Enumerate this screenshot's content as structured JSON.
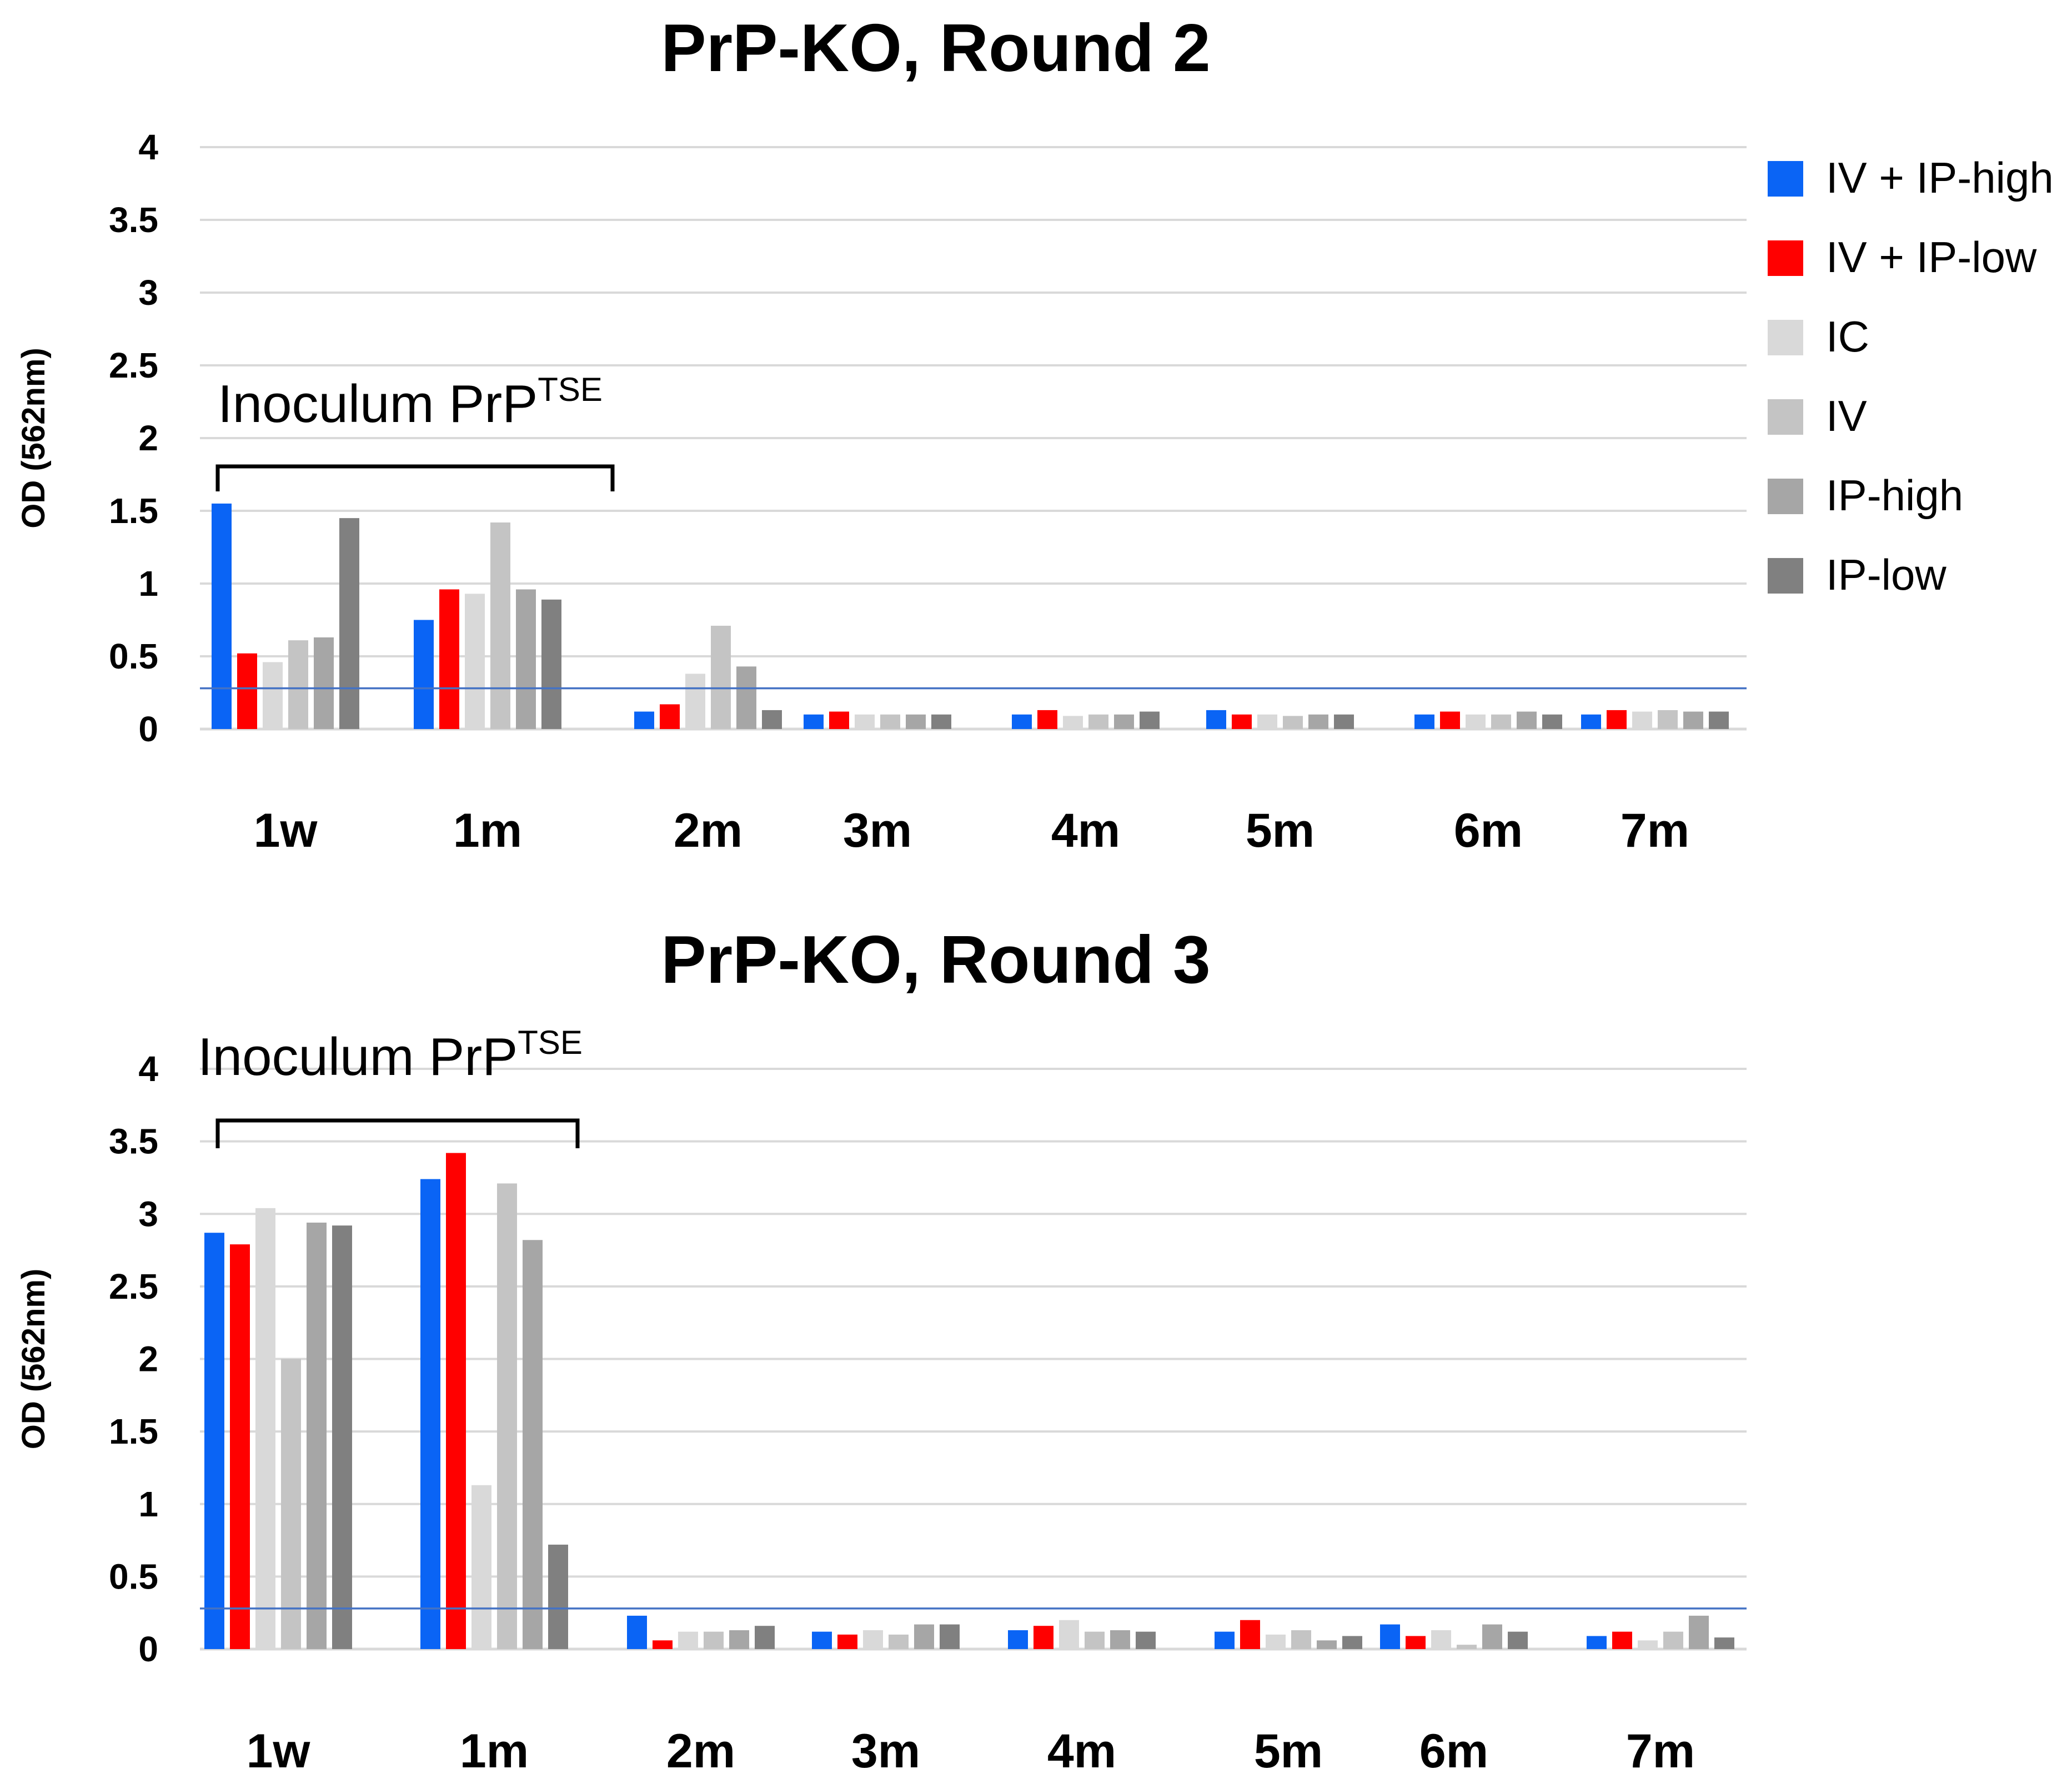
{
  "legend": {
    "items": [
      {
        "label": "IV + IP-high",
        "color": "#0a64f5"
      },
      {
        "label": "IV + IP-low",
        "color": "#ff0000"
      },
      {
        "label": "IC",
        "color": "#d9d9d9"
      },
      {
        "label": "IV",
        "color": "#c4c4c4"
      },
      {
        "label": "IP-high",
        "color": "#a6a6a6"
      },
      {
        "label": "IP-low",
        "color": "#808080"
      }
    ]
  },
  "chart_data": [
    {
      "type": "bar",
      "title": "PrP-KO, Round 2",
      "ylabel": "OD (562nm)",
      "xlabel": "",
      "ylim": [
        0,
        4
      ],
      "yticks": [
        "0",
        "0.5",
        "1",
        "1.5",
        "2",
        "2.5",
        "3",
        "3.5",
        "4"
      ],
      "categories": [
        "1w",
        "1m",
        "2m",
        "3m",
        "4m",
        "5m",
        "6m",
        "7m"
      ],
      "threshold": 0.28,
      "annotation": {
        "text": "Inoculum PrP",
        "superscript": "TSE",
        "spans": [
          "1w",
          "1m"
        ]
      },
      "series": [
        {
          "name": "IV + IP-high",
          "values": [
            1.55,
            0.75,
            0.12,
            0.1,
            0.1,
            0.13,
            0.1,
            0.1
          ]
        },
        {
          "name": "IV + IP-low",
          "values": [
            0.52,
            0.96,
            0.17,
            0.12,
            0.13,
            0.1,
            0.12,
            0.13
          ]
        },
        {
          "name": "IC",
          "values": [
            0.46,
            0.93,
            0.38,
            0.1,
            0.09,
            0.1,
            0.1,
            0.12
          ]
        },
        {
          "name": "IV",
          "values": [
            0.61,
            1.42,
            0.71,
            0.1,
            0.1,
            0.09,
            0.1,
            0.13
          ]
        },
        {
          "name": "IP-high",
          "values": [
            0.63,
            0.96,
            0.43,
            0.1,
            0.1,
            0.1,
            0.12,
            0.12
          ]
        },
        {
          "name": "IP-low",
          "values": [
            1.45,
            0.89,
            0.13,
            0.1,
            0.12,
            0.1,
            0.1,
            0.12
          ]
        }
      ]
    },
    {
      "type": "bar",
      "title": "PrP-KO, Round 3",
      "ylabel": "OD (562nm)",
      "xlabel": "",
      "ylim": [
        0,
        4
      ],
      "yticks": [
        "0",
        "0.5",
        "1",
        "1.5",
        "2",
        "2.5",
        "3",
        "3.5",
        "4"
      ],
      "categories": [
        "1w",
        "1m",
        "2m",
        "3m",
        "4m",
        "5m",
        "6m",
        "7m"
      ],
      "threshold": 0.28,
      "annotation": {
        "text": "Inoculum PrP",
        "superscript": "TSE",
        "spans": [
          "1w",
          "1m"
        ]
      },
      "series": [
        {
          "name": "IV + IP-high",
          "values": [
            2.87,
            3.24,
            0.23,
            0.12,
            0.13,
            0.12,
            0.17,
            0.09
          ]
        },
        {
          "name": "IV + IP-low",
          "values": [
            2.79,
            3.42,
            0.06,
            0.1,
            0.16,
            0.2,
            0.09,
            0.12
          ]
        },
        {
          "name": "IC",
          "values": [
            3.04,
            1.13,
            0.12,
            0.13,
            0.2,
            0.1,
            0.13,
            0.06
          ]
        },
        {
          "name": "IV",
          "values": [
            2.0,
            3.21,
            0.12,
            0.1,
            0.12,
            0.13,
            0.03,
            0.12
          ]
        },
        {
          "name": "IP-high",
          "values": [
            2.94,
            2.82,
            0.13,
            0.17,
            0.13,
            0.06,
            0.17,
            0.23
          ]
        },
        {
          "name": "IP-low",
          "values": [
            2.92,
            0.72,
            0.16,
            0.17,
            0.12,
            0.09,
            0.12,
            0.08
          ]
        }
      ]
    }
  ]
}
